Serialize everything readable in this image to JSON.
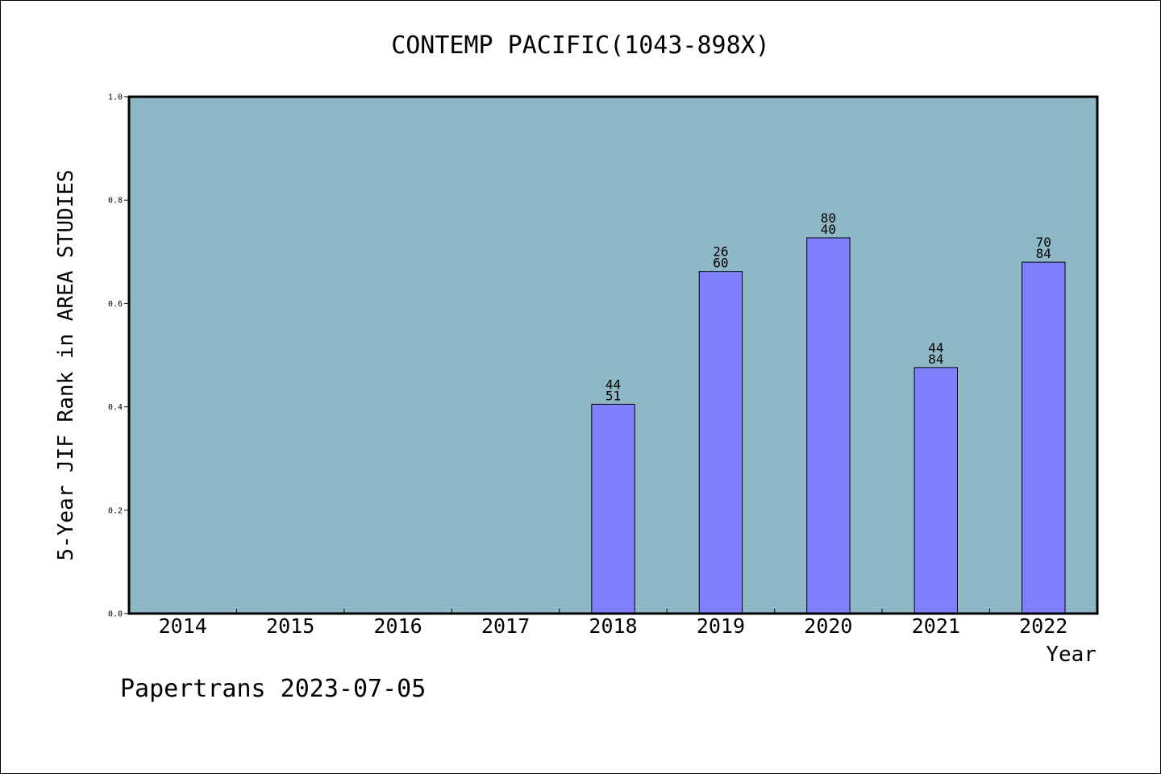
{
  "chart_data": {
    "type": "bar",
    "title": "CONTEMP PACIFIC(1043-898X)",
    "xlabel": "Year",
    "ylabel": "5-Year JIF Rank in AREA STUDIES",
    "ylim": [
      0,
      1.0
    ],
    "yticks": [
      "0.0",
      "0.2",
      "0.4",
      "0.6",
      "0.8",
      "1.0"
    ],
    "categories": [
      "2014",
      "2015",
      "2016",
      "2017",
      "2018",
      "2019",
      "2020",
      "2021",
      "2022"
    ],
    "values": [
      null,
      null,
      null,
      null,
      0.405,
      0.662,
      0.727,
      0.476,
      0.68
    ],
    "bar_labels": [
      null,
      null,
      null,
      null,
      {
        "top": "44",
        "bottom": "51"
      },
      {
        "top": "26",
        "bottom": "60"
      },
      {
        "top": "80",
        "bottom": "40"
      },
      {
        "top": "44",
        "bottom": "84"
      },
      {
        "top": "70",
        "bottom": "84"
      }
    ],
    "grid": false,
    "colors": {
      "plot_background": "#8fb8c6",
      "bar_fill": "#8080ff",
      "bar_stroke": "#000000"
    }
  },
  "footer": {
    "text": "Papertrans 2023-07-05"
  }
}
